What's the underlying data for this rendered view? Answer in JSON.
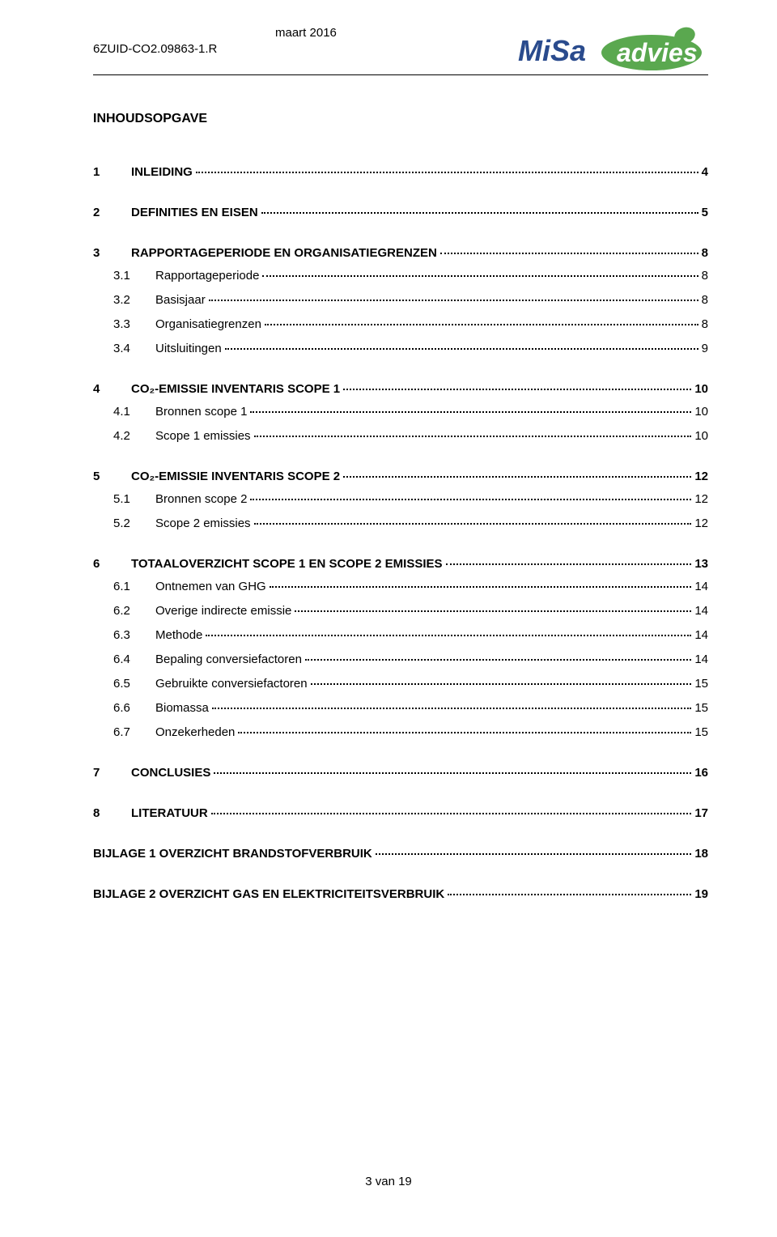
{
  "header": {
    "doc_code": "6ZUID-CO2.09863-1.R",
    "date": "maart 2016"
  },
  "logo": {
    "text_misa": "MiSa",
    "text_advies": "advies",
    "color_misa": "#2a4b8d",
    "color_advies": "#ffffff",
    "bg_advies": "#5aa84f",
    "leaf_color": "#5aa84f"
  },
  "title": "INHOUDSOPGAVE",
  "toc": [
    {
      "type": "main",
      "num": "1",
      "label": "INLEIDING",
      "page": "4"
    },
    {
      "type": "main",
      "num": "2",
      "label": "DEFINITIES EN EISEN",
      "page": "5"
    },
    {
      "type": "main",
      "num": "3",
      "label": "RAPPORTAGEPERIODE EN ORGANISATIEGRENZEN",
      "page": "8"
    },
    {
      "type": "sub",
      "num": "3.1",
      "label": "Rapportageperiode",
      "page": "8"
    },
    {
      "type": "sub",
      "num": "3.2",
      "label": "Basisjaar",
      "page": "8"
    },
    {
      "type": "sub",
      "num": "3.3",
      "label": "Organisatiegrenzen",
      "page": "8"
    },
    {
      "type": "sub",
      "num": "3.4",
      "label": "Uitsluitingen",
      "page": "9"
    },
    {
      "type": "main",
      "num": "4",
      "label": "CO₂-EMISSIE INVENTARIS SCOPE 1",
      "page": "10"
    },
    {
      "type": "sub",
      "num": "4.1",
      "label": "Bronnen scope 1",
      "page": "10"
    },
    {
      "type": "sub",
      "num": "4.2",
      "label": "Scope 1 emissies",
      "page": "10"
    },
    {
      "type": "main",
      "num": "5",
      "label": "CO₂-EMISSIE INVENTARIS SCOPE 2",
      "page": "12"
    },
    {
      "type": "sub",
      "num": "5.1",
      "label": "Bronnen scope 2",
      "page": "12"
    },
    {
      "type": "sub",
      "num": "5.2",
      "label": "Scope 2 emissies",
      "page": "12"
    },
    {
      "type": "main",
      "num": "6",
      "label": "TOTAALOVERZICHT SCOPE 1 EN SCOPE 2 EMISSIES",
      "page": "13"
    },
    {
      "type": "sub",
      "num": "6.1",
      "label": "Ontnemen van GHG",
      "page": "14"
    },
    {
      "type": "sub",
      "num": "6.2",
      "label": "Overige indirecte emissie",
      "page": "14"
    },
    {
      "type": "sub",
      "num": "6.3",
      "label": "Methode",
      "page": "14"
    },
    {
      "type": "sub",
      "num": "6.4",
      "label": "Bepaling conversiefactoren",
      "page": "14"
    },
    {
      "type": "sub",
      "num": "6.5",
      "label": "Gebruikte conversiefactoren",
      "page": "15"
    },
    {
      "type": "sub",
      "num": "6.6",
      "label": "Biomassa",
      "page": "15"
    },
    {
      "type": "sub",
      "num": "6.7",
      "label": "Onzekerheden",
      "page": "15"
    },
    {
      "type": "main",
      "num": "7",
      "label": "CONCLUSIES",
      "page": "16"
    },
    {
      "type": "main",
      "num": "8",
      "label": "LITERATUUR",
      "page": "17"
    },
    {
      "type": "appendix",
      "label": "BIJLAGE 1 OVERZICHT BRANDSTOFVERBRUIK",
      "page": "18"
    },
    {
      "type": "appendix",
      "label": "BIJLAGE 2 OVERZICHT GAS EN ELEKTRICITEITSVERBRUIK",
      "page": "19"
    }
  ],
  "footer": "3 van 19"
}
